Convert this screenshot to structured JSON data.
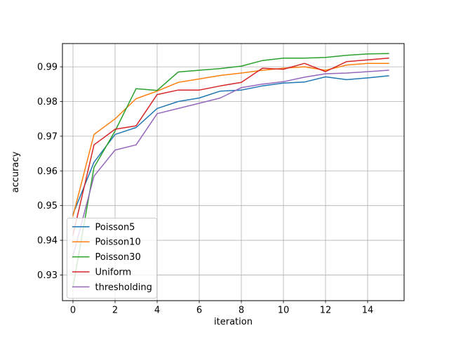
{
  "chart_data": {
    "type": "line",
    "title": "",
    "xlabel": "iteration",
    "ylabel": "accuracy",
    "grid": true,
    "legend_position": "lower left",
    "xlim": [
      -0.5,
      15.733
    ],
    "ylim": [
      0.9226,
      0.9967
    ],
    "xticks": [
      0,
      2,
      4,
      6,
      8,
      10,
      12,
      14
    ],
    "yticks": [
      0.93,
      0.94,
      0.95,
      0.96,
      0.97,
      0.98,
      0.99
    ],
    "x": [
      0,
      1,
      2,
      3,
      4,
      5,
      6,
      7,
      8,
      9,
      10,
      11,
      12,
      13,
      14,
      15
    ],
    "series": [
      {
        "name": "Poisson5",
        "color": "#1f77b4",
        "values": [
          0.9475,
          0.9625,
          0.9705,
          0.9725,
          0.978,
          0.98,
          0.981,
          0.983,
          0.9833,
          0.9845,
          0.9853,
          0.9856,
          0.9871,
          0.9863,
          0.9868,
          0.9874
        ]
      },
      {
        "name": "Poisson10",
        "color": "#ff7f0e",
        "values": [
          0.947,
          0.9705,
          0.975,
          0.9808,
          0.983,
          0.9855,
          0.9865,
          0.9875,
          0.9882,
          0.989,
          0.9896,
          0.99,
          0.989,
          0.9905,
          0.991,
          0.991
        ]
      },
      {
        "name": "Poisson30",
        "color": "#2ca02c",
        "values": [
          0.9265,
          0.961,
          0.9715,
          0.9837,
          0.9832,
          0.9885,
          0.989,
          0.9895,
          0.9902,
          0.9918,
          0.9925,
          0.9925,
          0.9927,
          0.9933,
          0.9937,
          0.9938
        ]
      },
      {
        "name": "Uniform",
        "color": "#d62728",
        "values": [
          0.9415,
          0.9675,
          0.972,
          0.973,
          0.982,
          0.9833,
          0.9833,
          0.9845,
          0.9855,
          0.9896,
          0.9893,
          0.991,
          0.9886,
          0.9915,
          0.992,
          0.9925
        ]
      },
      {
        "name": "thresholding",
        "color": "#9467bd",
        "values": [
          0.9355,
          0.9585,
          0.966,
          0.9675,
          0.9765,
          0.978,
          0.9795,
          0.981,
          0.984,
          0.985,
          0.9857,
          0.987,
          0.988,
          0.9882,
          0.9886,
          0.989
        ]
      }
    ],
    "styles": {
      "grid_color": "#b0b0b0",
      "spine_color": "#000000",
      "legend_border_color": "#cccccc",
      "background": "#ffffff"
    }
  }
}
